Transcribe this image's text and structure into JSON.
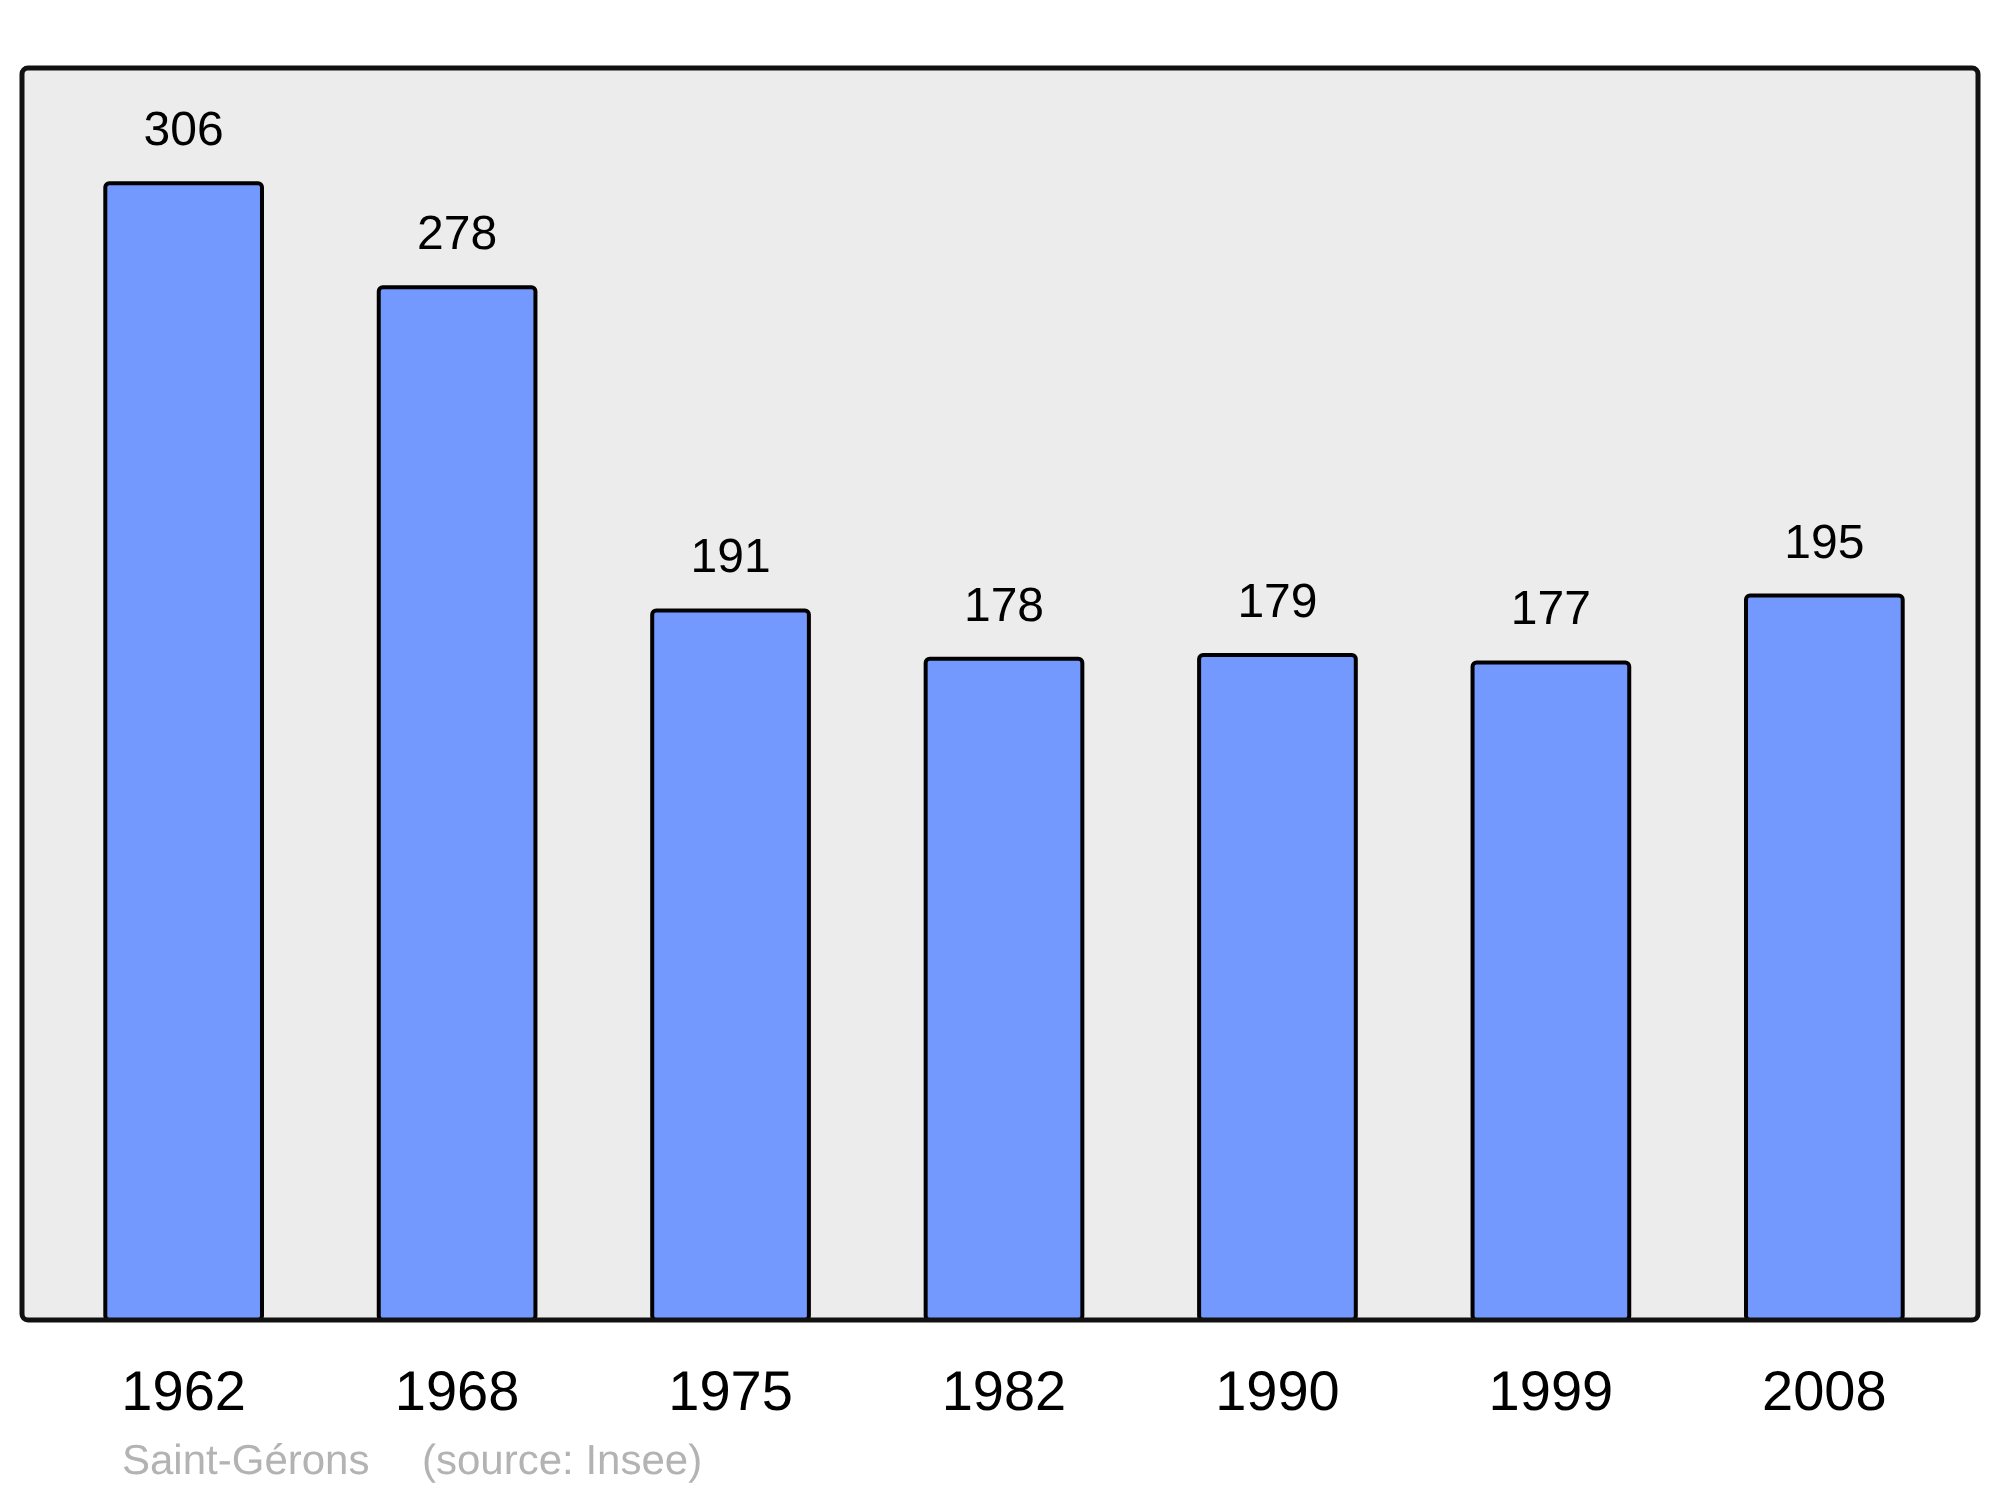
{
  "chart_data": {
    "type": "bar",
    "categories": [
      "1962",
      "1968",
      "1975",
      "1982",
      "1990",
      "1999",
      "2008"
    ],
    "values": [
      306,
      278,
      191,
      178,
      179,
      177,
      195
    ],
    "color": "#7399ff",
    "ylim": [
      0,
      337
    ],
    "data_labels": true,
    "annotations": [
      "Saint-Gérons",
      "(source: Insee)"
    ]
  }
}
